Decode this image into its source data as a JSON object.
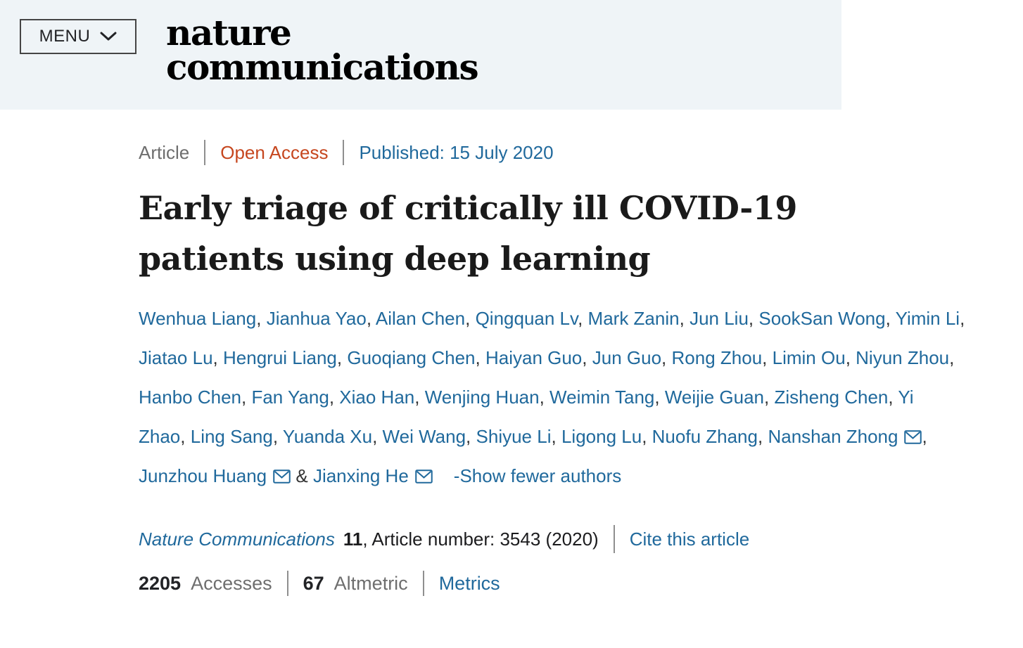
{
  "header": {
    "menu_label": "MENU",
    "logo_line1": "nature",
    "logo_line2": "communications"
  },
  "meta": {
    "type": "Article",
    "access": "Open Access",
    "published": "Published: 15 July 2020"
  },
  "title": "Early triage of critically ill COVID-19 patients using deep learning",
  "authors": {
    "list": [
      {
        "name": "Wenhua Liang",
        "email": false
      },
      {
        "name": "Jianhua Yao",
        "email": false
      },
      {
        "name": "Ailan Chen",
        "email": false
      },
      {
        "name": "Qingquan Lv",
        "email": false
      },
      {
        "name": "Mark Zanin",
        "email": false
      },
      {
        "name": "Jun Liu",
        "email": false
      },
      {
        "name": "SookSan Wong",
        "email": false
      },
      {
        "name": "Yimin Li",
        "email": false
      },
      {
        "name": "Jiatao Lu",
        "email": false
      },
      {
        "name": "Hengrui Liang",
        "email": false
      },
      {
        "name": "Guoqiang Chen",
        "email": false
      },
      {
        "name": "Haiyan Guo",
        "email": false
      },
      {
        "name": "Jun Guo",
        "email": false
      },
      {
        "name": "Rong Zhou",
        "email": false
      },
      {
        "name": "Limin Ou",
        "email": false
      },
      {
        "name": "Niyun Zhou",
        "email": false
      },
      {
        "name": "Hanbo Chen",
        "email": false
      },
      {
        "name": "Fan Yang",
        "email": false
      },
      {
        "name": "Xiao Han",
        "email": false
      },
      {
        "name": "Wenjing Huan",
        "email": false
      },
      {
        "name": "Weimin Tang",
        "email": false
      },
      {
        "name": "Weijie Guan",
        "email": false
      },
      {
        "name": "Zisheng Chen",
        "email": false
      },
      {
        "name": "Yi Zhao",
        "email": false
      },
      {
        "name": "Ling Sang",
        "email": false
      },
      {
        "name": "Yuanda Xu",
        "email": false
      },
      {
        "name": "Wei Wang",
        "email": false
      },
      {
        "name": "Shiyue Li",
        "email": false
      },
      {
        "name": "Ligong Lu",
        "email": false
      },
      {
        "name": "Nuofu Zhang",
        "email": false
      },
      {
        "name": "Nanshan Zhong",
        "email": true
      },
      {
        "name": "Junzhou Huang",
        "email": true
      },
      {
        "name": "Jianxing He",
        "email": true
      }
    ],
    "show_fewer_label": "-Show fewer authors"
  },
  "citation": {
    "journal": "Nature Communications",
    "volume": "11",
    "rest": ", Article number: 3543 (2020)",
    "cite_label": "Cite this article"
  },
  "metrics": {
    "accesses_value": "2205",
    "accesses_label": "Accesses",
    "altmetric_value": "67",
    "altmetric_label": "Altmetric",
    "metrics_label": "Metrics"
  },
  "colors": {
    "header_bg": "#eff4f7",
    "link_blue": "#20699c",
    "open_access": "#c6471f",
    "text_gray": "#6e6e6e",
    "text_dark": "#1c1c1e",
    "separator": "#8f8f8f",
    "logo_black": "#000000"
  }
}
